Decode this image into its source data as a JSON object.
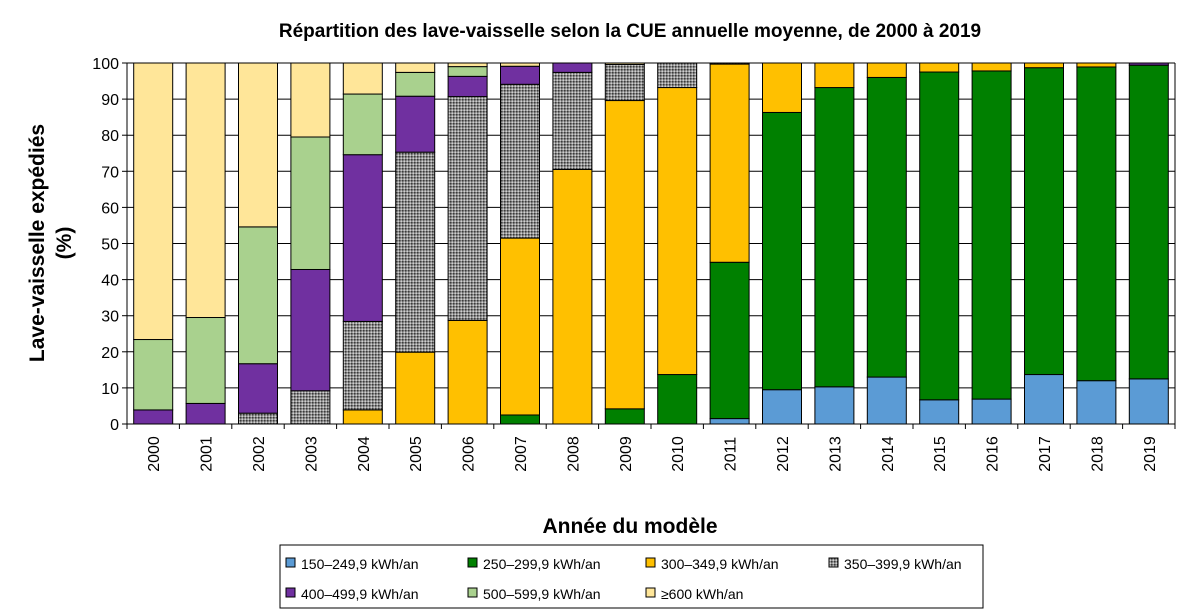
{
  "chart_data": {
    "type": "bar",
    "stacked": true,
    "title": "Répartition des lave-vaisselle selon la CUE annuelle moyenne, de 2000 à 2019",
    "xlabel": "Année du modèle",
    "ylabel_line1": "Lave-vaisselle expédiés",
    "ylabel_line2": "(%)",
    "ylim": [
      0,
      100
    ],
    "yticks": [
      "0",
      "10",
      "20",
      "30",
      "40",
      "50",
      "60",
      "70",
      "80",
      "90",
      "100"
    ],
    "categories": [
      "2000",
      "2001",
      "2002",
      "2003",
      "2004",
      "2005",
      "2006",
      "2007",
      "2008",
      "2009",
      "2010",
      "2011",
      "2012",
      "2013",
      "2014",
      "2015",
      "2016",
      "2017",
      "2018",
      "2019"
    ],
    "grid": "horizontal",
    "legend_position": "bottom",
    "series": [
      {
        "name": "150–249,9 kWh/an",
        "color": "#5b9bd5",
        "pattern": "solid",
        "values": [
          0,
          0,
          0,
          0,
          0,
          0,
          0,
          0,
          0,
          0,
          0,
          1.5,
          9.5,
          10.3,
          13,
          6.7,
          6.9,
          13.7,
          12,
          12.5
        ]
      },
      {
        "name": "250–299,9 kWh/an",
        "color": "#008000",
        "pattern": "solid",
        "values": [
          0,
          0,
          0,
          0,
          0,
          0,
          0,
          2.5,
          0,
          4.2,
          13.7,
          43.3,
          76.8,
          82.9,
          83,
          90.8,
          90.9,
          85,
          86.9,
          86.9
        ]
      },
      {
        "name": "300–349,9 kWh/an",
        "color": "#ffc000",
        "pattern": "solid",
        "values": [
          0,
          0,
          0,
          0,
          3.9,
          19.9,
          28.7,
          49,
          70.5,
          85.4,
          79.5,
          54.9,
          13.7,
          6.8,
          4,
          2.5,
          2.2,
          1.3,
          1.1,
          0
        ]
      },
      {
        "name": "350–399,9 kWh/an",
        "color": "#999999",
        "pattern": "dotted",
        "values": [
          0,
          0,
          3,
          9.2,
          24.5,
          55.4,
          62,
          42.6,
          26.9,
          10,
          6.8,
          0.3,
          0,
          0,
          0,
          0,
          0,
          0,
          0,
          0
        ]
      },
      {
        "name": "400–499,9 kWh/an",
        "color": "#7030a0",
        "pattern": "solid",
        "values": [
          3.9,
          5.7,
          13.7,
          33.6,
          46.2,
          15.5,
          5.6,
          5,
          2.6,
          0,
          0,
          0,
          0,
          0,
          0,
          0,
          0,
          0,
          0,
          0.6
        ]
      },
      {
        "name": "500–599,9 kWh/an",
        "color": "#a9d18e",
        "pattern": "solid",
        "values": [
          19.5,
          23.8,
          37.9,
          36.7,
          16.8,
          6.6,
          2.7,
          0,
          0,
          0,
          0,
          0,
          0,
          0,
          0,
          0,
          0,
          0,
          0,
          0
        ]
      },
      {
        "name": "≥600 kWh/an",
        "color": "#ffe699",
        "pattern": "solid",
        "values": [
          76.6,
          70.5,
          45.4,
          20.5,
          8.6,
          2.6,
          1,
          0.9,
          0,
          0.4,
          0,
          0,
          0,
          0,
          0,
          0,
          0,
          0,
          0,
          0
        ]
      }
    ]
  }
}
